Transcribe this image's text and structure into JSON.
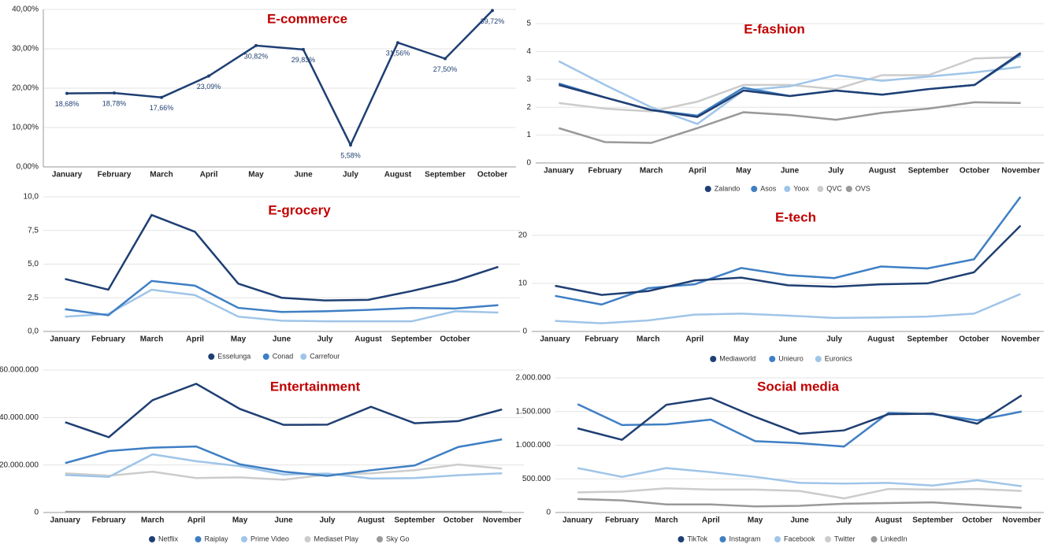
{
  "chart_data": [
    {
      "type": "line",
      "title": "E-commerce",
      "categories": [
        "January",
        "February",
        "March",
        "April",
        "May",
        "June",
        "July",
        "August",
        "September",
        "October"
      ],
      "values": [
        18.68,
        18.78,
        17.66,
        23.09,
        30.82,
        29.83,
        5.58,
        31.56,
        27.5,
        39.72
      ],
      "value_labels": [
        "18,68%",
        "18,78%",
        "17,66%",
        "23,09%",
        "30,82%",
        "29,83%",
        "5,58%",
        "31,56%",
        "27,50%",
        "39,72%"
      ],
      "color": "#1f3f73",
      "ylim": [
        0,
        40
      ],
      "yticks": [
        {
          "value": 0,
          "label": "0,00%"
        },
        {
          "value": 10,
          "label": "10,00%"
        },
        {
          "value": 20,
          "label": "20,00%"
        },
        {
          "value": 30,
          "label": "30,00%"
        },
        {
          "value": 40,
          "label": "40,00%"
        }
      ],
      "grid": true
    },
    {
      "type": "line",
      "title": "E-fashion",
      "categories": [
        "January",
        "February",
        "March",
        "April",
        "May",
        "June",
        "July",
        "August",
        "September",
        "October",
        "November"
      ],
      "series": [
        {
          "name": "Zalando",
          "color": "#1f3f73",
          "values": [
            2.8,
            2.35,
            1.9,
            1.65,
            2.6,
            2.4,
            2.6,
            2.45,
            2.65,
            2.8,
            3.95
          ]
        },
        {
          "name": "Asos",
          "color": "#3f7fc4",
          "values": [
            2.85,
            2.35,
            1.9,
            1.7,
            2.7,
            2.4,
            2.6,
            2.45,
            2.65,
            2.8,
            3.9
          ]
        },
        {
          "name": "Yoox",
          "color": "#9fc5e8",
          "values": [
            3.65,
            2.8,
            2.0,
            1.4,
            2.6,
            2.75,
            3.15,
            2.95,
            3.1,
            3.25,
            3.45
          ]
        },
        {
          "name": "QVC",
          "color": "#cccccc",
          "values": [
            2.15,
            1.95,
            1.85,
            2.2,
            2.8,
            2.8,
            2.65,
            3.15,
            3.15,
            3.75,
            3.8
          ]
        },
        {
          "name": "OVS",
          "color": "#999999",
          "values": [
            1.25,
            0.75,
            0.72,
            1.25,
            1.82,
            1.72,
            1.55,
            1.8,
            1.95,
            2.18,
            2.15
          ]
        }
      ],
      "ylim": [
        0,
        5
      ],
      "yticks": [
        0,
        1,
        2,
        3,
        4,
        5
      ],
      "grid": true,
      "legend": "bottom"
    },
    {
      "type": "line",
      "title": "E-grocery",
      "categories": [
        "January",
        "February",
        "March",
        "April",
        "May",
        "June",
        "July",
        "August",
        "September",
        "October",
        null
      ],
      "series": [
        {
          "name": "Esselunga",
          "color": "#1f3f73",
          "values": [
            3.9,
            3.1,
            8.65,
            7.4,
            3.55,
            2.5,
            2.3,
            2.35,
            3.0,
            3.75,
            4.8
          ]
        },
        {
          "name": "Conad",
          "color": "#3f7fc4",
          "values": [
            1.65,
            1.2,
            3.75,
            3.4,
            1.75,
            1.45,
            1.5,
            1.6,
            1.75,
            1.7,
            1.95
          ]
        },
        {
          "name": "Carrefour",
          "color": "#9fc5e8",
          "values": [
            1.1,
            1.3,
            3.1,
            2.7,
            1.1,
            0.8,
            0.75,
            0.75,
            0.75,
            1.5,
            1.4
          ]
        }
      ],
      "ylim": [
        0,
        10
      ],
      "yticks": [
        {
          "value": 0,
          "label": "0,0"
        },
        {
          "value": 2.5,
          "label": "2,5"
        },
        {
          "value": 5,
          "label": "5,0"
        },
        {
          "value": 7.5,
          "label": "7,5"
        },
        {
          "value": 10,
          "label": "10,0"
        }
      ],
      "grid": true,
      "legend": "bottom"
    },
    {
      "type": "line",
      "title": "E-tech",
      "categories": [
        "January",
        "February",
        "March",
        "April",
        "May",
        "June",
        "July",
        "August",
        "September",
        "October",
        "November"
      ],
      "series": [
        {
          "name": "Mediaworld",
          "color": "#1f3f73",
          "values": [
            9.5,
            7.6,
            8.4,
            10.6,
            11.2,
            9.6,
            9.3,
            9.8,
            10.0,
            12.3,
            22.0
          ]
        },
        {
          "name": "Unieuro",
          "color": "#3f7fc4",
          "values": [
            7.4,
            5.6,
            9.0,
            9.8,
            13.2,
            11.7,
            11.1,
            13.5,
            13.1,
            15.0,
            28.0
          ]
        },
        {
          "name": "Euronics",
          "color": "#9fc5e8",
          "values": [
            2.2,
            1.7,
            2.3,
            3.5,
            3.7,
            3.3,
            2.8,
            2.9,
            3.1,
            3.7,
            7.8
          ]
        }
      ],
      "ylim": [
        0,
        28
      ],
      "yticks": [
        0,
        10,
        20
      ],
      "grid": true,
      "legend": "bottom"
    },
    {
      "type": "line",
      "title": "Entertainment",
      "categories": [
        "January",
        "February",
        "March",
        "April",
        "May",
        "June",
        "July",
        "August",
        "September",
        "October",
        "November"
      ],
      "series": [
        {
          "name": "Netflix",
          "color": "#1f3f73",
          "values": [
            38000000,
            31700000,
            47300000,
            54200000,
            43600000,
            36900000,
            37000000,
            44500000,
            37600000,
            38500000,
            43400000
          ]
        },
        {
          "name": "Raiplay",
          "color": "#3f7fc4",
          "values": [
            20800000,
            25900000,
            27300000,
            27800000,
            20300000,
            17200000,
            15400000,
            17800000,
            19800000,
            27600000,
            30800000
          ]
        },
        {
          "name": "Prime Video",
          "color": "#9fc5e8",
          "values": [
            15800000,
            15000000,
            24500000,
            21600000,
            19500000,
            16000000,
            16400000,
            14300000,
            14500000,
            15700000,
            16500000
          ]
        },
        {
          "name": "Mediaset Play",
          "color": "#cccccc",
          "values": [
            16500000,
            15500000,
            17200000,
            14500000,
            14800000,
            13800000,
            16000000,
            16500000,
            17800000,
            20200000,
            18500000
          ]
        },
        {
          "name": "Sky Go",
          "color": "#999999",
          "values": [
            300000,
            300000,
            300000,
            300000,
            300000,
            300000,
            300000,
            300000,
            300000,
            300000,
            300000
          ]
        }
      ],
      "ylim": [
        0,
        60000000
      ],
      "yticks": [
        0,
        {
          "value": 20000000,
          "label": "20.000.000"
        },
        {
          "value": 40000000,
          "label": "40.000.000"
        },
        {
          "value": 60000000,
          "label": "60.000.000"
        }
      ],
      "grid": true,
      "legend": "bottom"
    },
    {
      "type": "line",
      "title": "Social media",
      "categories": [
        "January",
        "February",
        "March",
        "April",
        "May",
        "June",
        "July",
        "August",
        "September",
        "October",
        "November"
      ],
      "series": [
        {
          "name": "TikTok",
          "color": "#1f3f73",
          "values": [
            1250000,
            1080000,
            1600000,
            1700000,
            1420000,
            1170000,
            1220000,
            1460000,
            1470000,
            1320000,
            1740000
          ]
        },
        {
          "name": "Instagram",
          "color": "#3f7fc4",
          "values": [
            1610000,
            1300000,
            1310000,
            1380000,
            1060000,
            1030000,
            980000,
            1480000,
            1460000,
            1370000,
            1500000
          ]
        },
        {
          "name": "Facebook",
          "color": "#9fc5e8",
          "values": [
            660000,
            530000,
            660000,
            600000,
            530000,
            440000,
            430000,
            440000,
            400000,
            480000,
            390000
          ]
        },
        {
          "name": "Twitter",
          "color": "#cccccc",
          "values": [
            300000,
            310000,
            360000,
            340000,
            340000,
            320000,
            210000,
            350000,
            340000,
            350000,
            320000
          ]
        },
        {
          "name": "LinkedIn",
          "color": "#999999",
          "values": [
            200000,
            180000,
            120000,
            120000,
            90000,
            100000,
            130000,
            140000,
            150000,
            110000,
            70000
          ]
        }
      ],
      "ylim": [
        0,
        2000000
      ],
      "yticks": [
        0,
        {
          "value": 500000,
          "label": "500.000"
        },
        {
          "value": 1000000,
          "label": "1.000.000"
        },
        {
          "value": 1500000,
          "label": "1.500.000"
        },
        {
          "value": 2000000,
          "label": "2.000.000"
        }
      ],
      "grid": true,
      "legend": "bottom"
    }
  ]
}
